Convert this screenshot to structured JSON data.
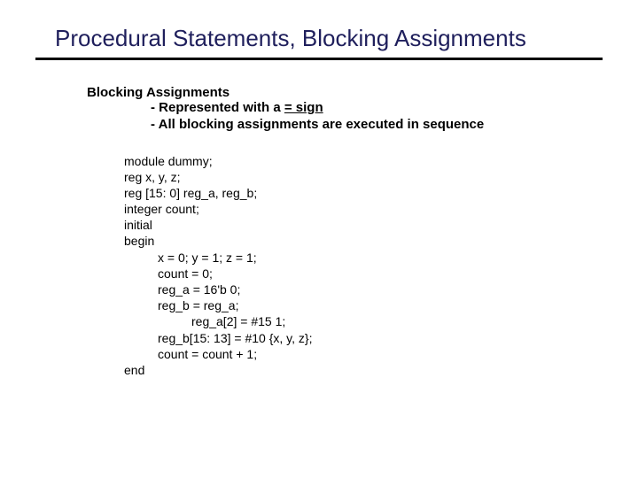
{
  "title": "Procedural Statements, Blocking Assignments",
  "subhead": "Blocking Assignments",
  "bullet1_prefix": "- Represented with a ",
  "bullet1_eq": "= sign",
  "bullet2": "- All blocking assignments are executed in sequence",
  "code": {
    "l1": "module dummy;",
    "l2": "reg x, y, z;",
    "l3": "reg [15: 0] reg_a, reg_b;",
    "l4": "integer count;",
    "l5": "initial",
    "l6": "begin",
    "l7": "x = 0; y = 1; z = 1;",
    "l8": "count = 0;",
    "l9": "reg_a = 16'b 0;",
    "l10": "reg_b = reg_a;",
    "l11": "reg_a[2] = #15 1;",
    "l12": "reg_b[15: 13] = #10 {x, y, z};",
    "l13": "count = count + 1;",
    "l14": "end"
  },
  "colors": {
    "title": "#1f1f5c",
    "rule": "#000000",
    "text": "#000000",
    "background": "#ffffff"
  },
  "typography": {
    "title_fontsize": 26,
    "body_fontsize": 15,
    "code_fontsize": 14,
    "font_family": "Arial"
  }
}
